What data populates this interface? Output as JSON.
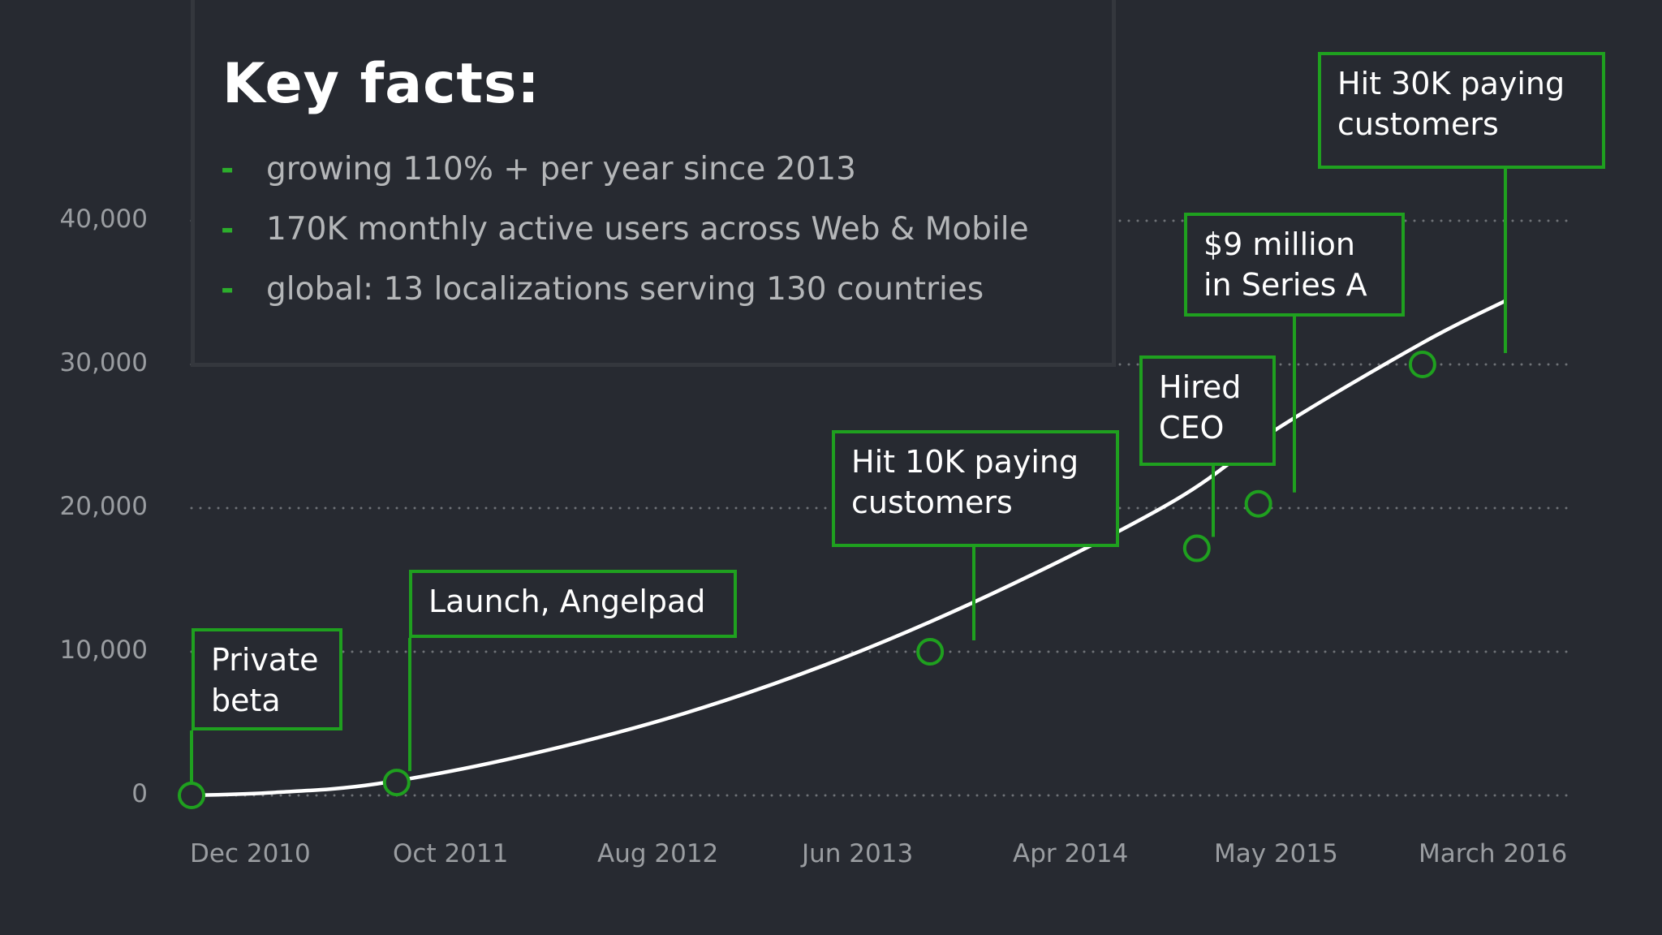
{
  "facts": {
    "title": "Key facts:",
    "items": [
      "growing 110% + per year since 2013",
      "170K monthly active users across Web & Mobile",
      "global: 13 localizations serving 130 countries"
    ],
    "bullet": "-"
  },
  "colors": {
    "background": "#272a31",
    "accent": "#1fa01f",
    "line": "#ffffff",
    "grid": "#6f7277",
    "text_muted": "#9a9da1"
  },
  "chart_data": {
    "type": "line",
    "title": "",
    "xlabel": "",
    "ylabel": "",
    "y_ticks": [
      "0",
      "10,000",
      "20,000",
      "30,000",
      "40,000"
    ],
    "y_tick_values": [
      0,
      10000,
      20000,
      30000,
      40000
    ],
    "ylim": [
      0,
      40000
    ],
    "x_tick_labels": [
      "Dec 2010",
      "Oct 2011",
      "Aug 2012",
      "Jun 2013",
      "Apr 2014",
      "May 2015",
      "March 2016"
    ],
    "grid": "dotted horizontal",
    "series": [
      {
        "x": [
          "Dec 2010",
          "Apr 2011",
          "Sep 2011",
          "Apr 2012",
          "Dec 2012",
          "Aug 2013",
          "Apr 2014",
          "Dec 2014",
          "May 2015",
          "Dec 2015",
          "Apr 2016"
        ],
        "values": [
          0,
          200,
          800,
          2700,
          5700,
          9700,
          14700,
          20600,
          25600,
          31500,
          34400
        ]
      }
    ],
    "milestones": [
      {
        "label": "Private beta",
        "x": "Dec 2010",
        "y": 0
      },
      {
        "label": "Launch, Angelpad",
        "x": "Oct 2011",
        "y": 900
      },
      {
        "label": "Hit 10K paying customers",
        "x": "Dec 2013",
        "y": 10000
      },
      {
        "label": "Hired CEO",
        "x": "Jan 2015",
        "y": 17200
      },
      {
        "label": "$9 million in Series A",
        "x": "Apr 2015",
        "y": 20300
      },
      {
        "label": "Hit 30K paying customers",
        "x": "Dec 2015",
        "y": 30000
      }
    ]
  }
}
